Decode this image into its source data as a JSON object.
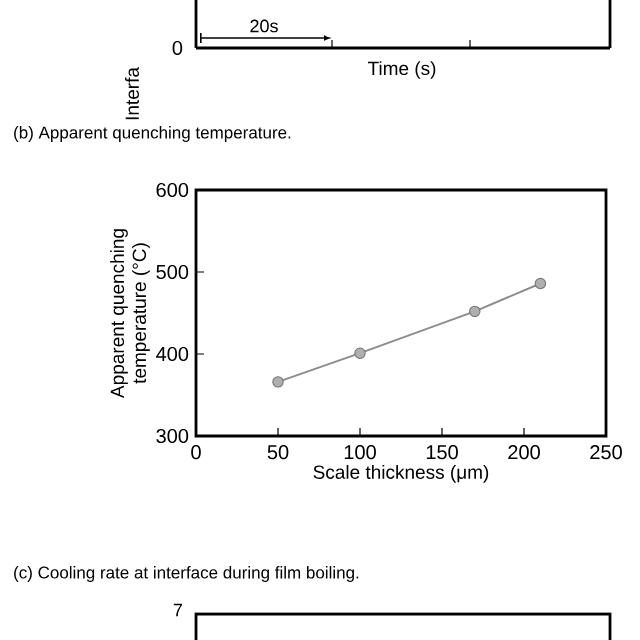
{
  "chart_data": [
    {
      "type": "other",
      "xlabel": "Time (s)",
      "ylabel": "Interfa",
      "annotations": [
        "20s",
        "0"
      ]
    },
    {
      "type": "line",
      "title": "(b) Apparent quenching temperature.",
      "xlabel": "Scale thickness (μm)",
      "ylabel": "Apparent quenching\ntemperature (°C)",
      "x": [
        50,
        100,
        170,
        210
      ],
      "series": [
        {
          "color": "#8c8c8c",
          "values": [
            366,
            401,
            452,
            486
          ]
        }
      ],
      "xlim": [
        0,
        250
      ],
      "xticks": [
        0,
        50,
        100,
        150,
        200,
        250
      ],
      "ylim": [
        300,
        600
      ],
      "yticks": [
        300,
        400,
        500,
        600
      ],
      "marker": "circle",
      "line_style": "solid"
    },
    {
      "type": "other",
      "title": "(c) Cooling rate at interface during film boiling.",
      "annotations": [
        "7"
      ]
    }
  ]
}
